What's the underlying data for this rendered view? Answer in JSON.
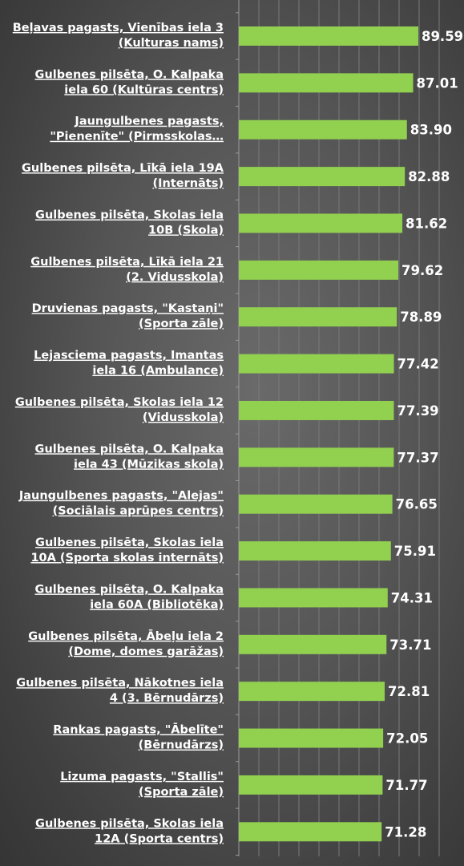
{
  "chart_data": {
    "type": "bar",
    "orientation": "horizontal",
    "title": "",
    "xlabel": "",
    "ylabel": "",
    "bar_color": "#92d050",
    "background_color": "#4a4a4a",
    "label_color": "#ffffff",
    "grid": true,
    "legend": "none",
    "xlim": [
      0,
      100
    ],
    "categories": [
      [
        "Beļavas pagasts, Vienības iela 3",
        "(Kulturas nams)"
      ],
      [
        "Gulbenes pilsēta, O. Kalpaka",
        "iela 60 (Kultūras centrs)"
      ],
      [
        "Jaungulbenes pagasts,",
        "\"Pienenīte\" (Pirmsskolas…"
      ],
      [
        "Gulbenes pilsēta, Līkā iela 19A",
        "(Internāts)"
      ],
      [
        "Gulbenes pilsēta, Skolas iela",
        "10B (Skola)"
      ],
      [
        "Gulbenes pilsēta, Līkā iela 21",
        "(2. Vidusskola)"
      ],
      [
        "Druvienas pagasts, \"Kastaņi\"",
        "(Sporta zāle)"
      ],
      [
        "Lejasciema pagasts, Imantas",
        "iela 16 (Ambulance)"
      ],
      [
        "Gulbenes pilsēta, Skolas iela 12",
        "(Vidusskola)"
      ],
      [
        "Gulbenes pilsēta, O. Kalpaka",
        "iela 43 (Mūzikas skola)"
      ],
      [
        "Jaungulbenes pagasts, \"Alejas\"",
        "(Sociālais aprūpes centrs)"
      ],
      [
        "Gulbenes pilsēta, Skolas iela",
        "10A (Sporta skolas internāts)"
      ],
      [
        "Gulbenes pilsēta, O. Kalpaka",
        "iela 60A (Bibliotēka)"
      ],
      [
        "Gulbenes pilsēta, Ābeļu iela 2",
        "(Dome, domes garāžas)"
      ],
      [
        "Gulbenes pilsēta, Nākotnes iela",
        "4 (3. Bērnudārzs)"
      ],
      [
        "Rankas pagasts, \"Ābelīte\"",
        "(Bērnudārzs)"
      ],
      [
        "Lizuma pagasts, \"Stallis\"",
        "(Sporta zāle)"
      ],
      [
        "Gulbenes pilsēta, Skolas iela",
        "12A (Sporta centrs)"
      ]
    ],
    "values": [
      89.59,
      87.01,
      83.9,
      82.88,
      81.62,
      79.62,
      78.89,
      77.42,
      77.39,
      77.37,
      76.65,
      75.91,
      74.31,
      73.71,
      72.81,
      72.05,
      71.77,
      71.28
    ],
    "value_labels": [
      "89.59",
      "87.01",
      "83.90",
      "82.88",
      "81.62",
      "79.62",
      "78.89",
      "77.42",
      "77.39",
      "77.37",
      "76.65",
      "75.91",
      "74.31",
      "73.71",
      "72.81",
      "72.05",
      "71.77",
      "71.28"
    ]
  }
}
